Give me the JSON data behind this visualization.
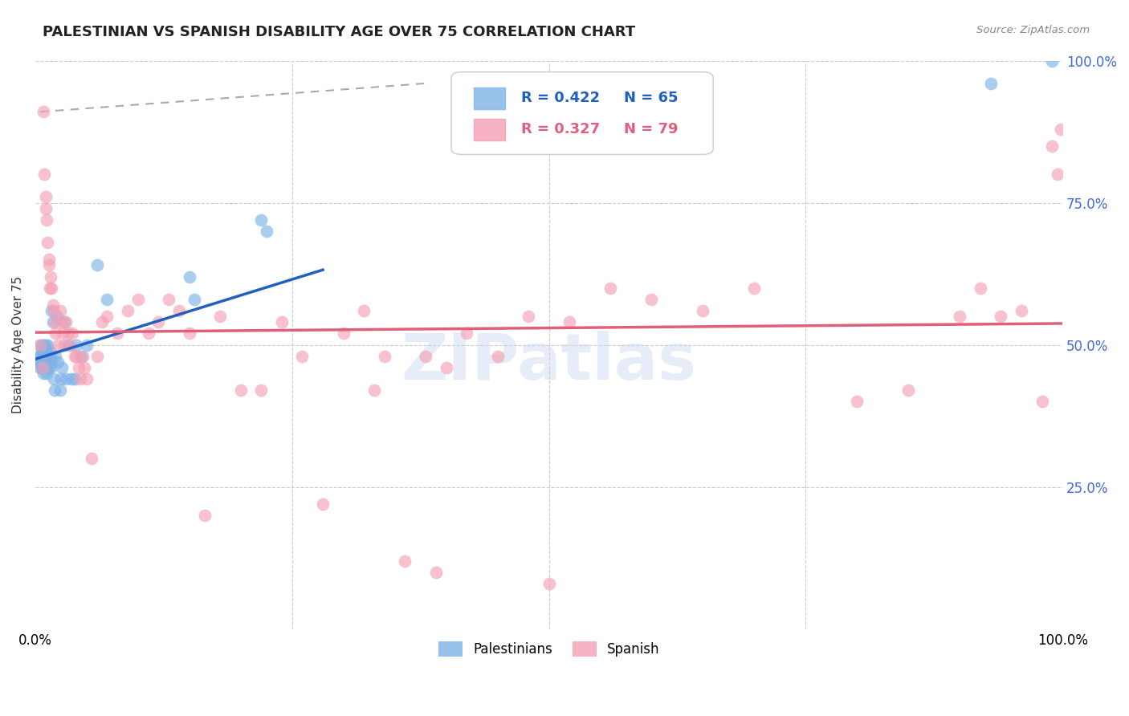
{
  "title": "PALESTINIAN VS SPANISH DISABILITY AGE OVER 75 CORRELATION CHART",
  "source": "Source: ZipAtlas.com",
  "ylabel": "Disability Age Over 75",
  "xlim": [
    0.0,
    1.0
  ],
  "ylim": [
    0.0,
    1.0
  ],
  "grid_color": "#cccccc",
  "background_color": "#ffffff",
  "watermark_text": "ZIPatlas",
  "legend_r1": "R = 0.422",
  "legend_n1": "N = 65",
  "legend_r2": "R = 0.327",
  "legend_n2": "N = 79",
  "pal_color": "#7eb3e8",
  "spanish_color": "#f4a0b5",
  "pal_line_color": "#2060c0",
  "spanish_line_color": "#e0607a",
  "diag_line_color": "#aaaaaa",
  "palestinians_x": [
    0.004,
    0.004,
    0.005,
    0.005,
    0.005,
    0.005,
    0.006,
    0.006,
    0.006,
    0.007,
    0.007,
    0.007,
    0.007,
    0.008,
    0.008,
    0.008,
    0.008,
    0.008,
    0.009,
    0.009,
    0.009,
    0.009,
    0.01,
    0.01,
    0.01,
    0.01,
    0.011,
    0.011,
    0.011,
    0.012,
    0.012,
    0.012,
    0.013,
    0.013,
    0.014,
    0.014,
    0.015,
    0.015,
    0.016,
    0.016,
    0.017,
    0.018,
    0.019,
    0.02,
    0.021,
    0.022,
    0.024,
    0.025,
    0.026,
    0.028,
    0.03,
    0.032,
    0.035,
    0.038,
    0.04,
    0.045,
    0.05,
    0.06,
    0.07,
    0.15,
    0.155,
    0.22,
    0.225,
    0.93,
    0.99
  ],
  "palestinians_y": [
    0.47,
    0.48,
    0.46,
    0.47,
    0.48,
    0.5,
    0.46,
    0.47,
    0.49,
    0.46,
    0.47,
    0.48,
    0.5,
    0.45,
    0.46,
    0.47,
    0.48,
    0.5,
    0.46,
    0.47,
    0.48,
    0.49,
    0.46,
    0.47,
    0.48,
    0.5,
    0.45,
    0.47,
    0.49,
    0.46,
    0.48,
    0.5,
    0.46,
    0.47,
    0.47,
    0.49,
    0.46,
    0.48,
    0.47,
    0.56,
    0.54,
    0.44,
    0.42,
    0.48,
    0.55,
    0.47,
    0.42,
    0.44,
    0.46,
    0.54,
    0.44,
    0.5,
    0.44,
    0.44,
    0.5,
    0.48,
    0.5,
    0.64,
    0.58,
    0.62,
    0.58,
    0.72,
    0.7,
    0.96,
    1.0
  ],
  "spanish_x": [
    0.005,
    0.007,
    0.008,
    0.009,
    0.01,
    0.01,
    0.011,
    0.012,
    0.013,
    0.013,
    0.014,
    0.015,
    0.016,
    0.017,
    0.018,
    0.019,
    0.02,
    0.022,
    0.024,
    0.025,
    0.027,
    0.028,
    0.03,
    0.032,
    0.034,
    0.036,
    0.038,
    0.04,
    0.042,
    0.044,
    0.046,
    0.048,
    0.05,
    0.055,
    0.06,
    0.065,
    0.07,
    0.08,
    0.09,
    0.1,
    0.11,
    0.12,
    0.13,
    0.14,
    0.15,
    0.165,
    0.18,
    0.2,
    0.22,
    0.24,
    0.26,
    0.28,
    0.3,
    0.32,
    0.34,
    0.36,
    0.38,
    0.4,
    0.42,
    0.45,
    0.48,
    0.52,
    0.56,
    0.6,
    0.65,
    0.7,
    0.8,
    0.85,
    0.9,
    0.92,
    0.94,
    0.96,
    0.98,
    0.99,
    0.995,
    0.998,
    0.33,
    0.39,
    0.5
  ],
  "spanish_y": [
    0.5,
    0.46,
    0.91,
    0.8,
    0.76,
    0.74,
    0.72,
    0.68,
    0.65,
    0.64,
    0.6,
    0.62,
    0.6,
    0.57,
    0.56,
    0.54,
    0.52,
    0.5,
    0.56,
    0.54,
    0.52,
    0.5,
    0.54,
    0.52,
    0.5,
    0.52,
    0.48,
    0.48,
    0.46,
    0.44,
    0.48,
    0.46,
    0.44,
    0.3,
    0.48,
    0.54,
    0.55,
    0.52,
    0.56,
    0.58,
    0.52,
    0.54,
    0.58,
    0.56,
    0.52,
    0.2,
    0.55,
    0.42,
    0.42,
    0.54,
    0.48,
    0.22,
    0.52,
    0.56,
    0.48,
    0.12,
    0.48,
    0.46,
    0.52,
    0.48,
    0.55,
    0.54,
    0.6,
    0.58,
    0.56,
    0.6,
    0.4,
    0.42,
    0.55,
    0.6,
    0.55,
    0.56,
    0.4,
    0.85,
    0.8,
    0.88,
    0.42,
    0.1,
    0.08
  ]
}
